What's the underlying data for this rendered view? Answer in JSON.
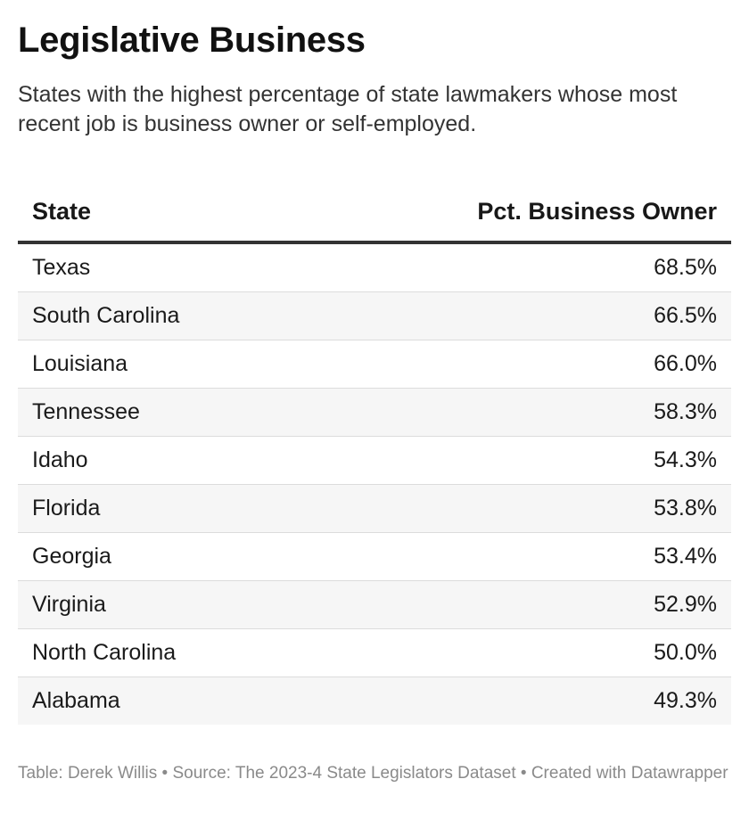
{
  "title": "Legislative Business",
  "subtitle": "States with the highest percentage of state lawmakers whose most recent job is business owner or self-employed.",
  "table": {
    "headers": {
      "state": "State",
      "pct": "Pct. Business Owner"
    }
  },
  "footer": "Table: Derek Willis • Source: The 2023-4 State Legislators Dataset • Created with Datawrapper",
  "chart_data": {
    "type": "table",
    "columns": [
      "State",
      "Pct. Business Owner"
    ],
    "rows": [
      {
        "state": "Texas",
        "pct": "68.5%",
        "value": 68.5
      },
      {
        "state": "South Carolina",
        "pct": "66.5%",
        "value": 66.5
      },
      {
        "state": "Louisiana",
        "pct": "66.0%",
        "value": 66.0
      },
      {
        "state": "Tennessee",
        "pct": "58.3%",
        "value": 58.3
      },
      {
        "state": "Idaho",
        "pct": "54.3%",
        "value": 54.3
      },
      {
        "state": "Florida",
        "pct": "53.8%",
        "value": 53.8
      },
      {
        "state": "Georgia",
        "pct": "53.4%",
        "value": 53.4
      },
      {
        "state": "Virginia",
        "pct": "52.9%",
        "value": 52.9
      },
      {
        "state": "North Carolina",
        "pct": "50.0%",
        "value": 50.0
      },
      {
        "state": "Alabama",
        "pct": "49.3%",
        "value": 49.3
      }
    ]
  }
}
